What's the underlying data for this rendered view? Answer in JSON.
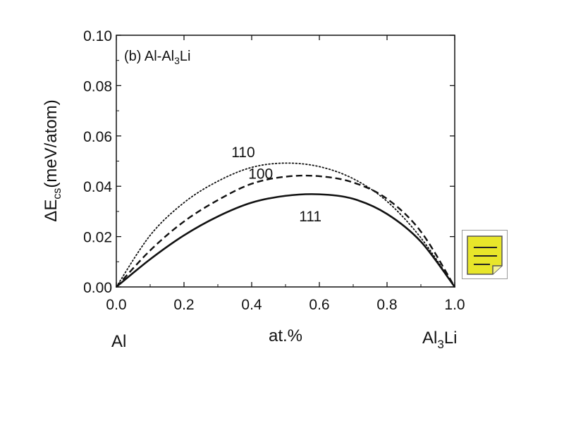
{
  "chart_data": {
    "type": "line",
    "panel_label": "(b) Al-Al",
    "panel_label_sub": "3",
    "panel_label_tail": "Li",
    "xlabel": "at.%",
    "ylabel_prefix": "ΔE",
    "ylabel_sub": "cs",
    "ylabel_suffix": "(meV/atom)",
    "xlim": [
      0.0,
      1.0
    ],
    "ylim": [
      0.0,
      0.1
    ],
    "x_ticks": [
      "0.0",
      "0.2",
      "0.4",
      "0.6",
      "0.8",
      "1.0"
    ],
    "y_ticks": [
      "0.00",
      "0.02",
      "0.04",
      "0.06",
      "0.08",
      "0.10"
    ],
    "x_end_left": "Al",
    "x_end_right_main": "Al",
    "x_end_right_sub": "3",
    "x_end_right_tail": "Li",
    "x": [
      0.0,
      0.1,
      0.2,
      0.3,
      0.4,
      0.5,
      0.6,
      0.7,
      0.8,
      0.9,
      1.0
    ],
    "series": [
      {
        "name": "110",
        "style": "dotted",
        "values": [
          0.0,
          0.0205,
          0.0335,
          0.042,
          0.0475,
          0.0492,
          0.0478,
          0.043,
          0.034,
          0.0195,
          0.0
        ]
      },
      {
        "name": "100",
        "style": "dashed",
        "values": [
          0.0,
          0.0145,
          0.026,
          0.0345,
          0.041,
          0.0438,
          0.044,
          0.0415,
          0.035,
          0.022,
          0.0
        ]
      },
      {
        "name": "111",
        "style": "solid",
        "values": [
          0.0,
          0.011,
          0.0205,
          0.028,
          0.0335,
          0.0362,
          0.0368,
          0.035,
          0.029,
          0.018,
          0.0
        ]
      }
    ],
    "series_label_anchor": [
      {
        "name": "110",
        "x": 0.34,
        "y": 0.0515
      },
      {
        "name": "100",
        "x": 0.39,
        "y": 0.043
      },
      {
        "name": "111",
        "x": 0.54,
        "y": 0.026
      }
    ]
  },
  "colors": {
    "line": "#111111",
    "note_fill": "#e8e62a",
    "note_border": "#555555"
  },
  "widget": {
    "icon": "note-icon"
  }
}
